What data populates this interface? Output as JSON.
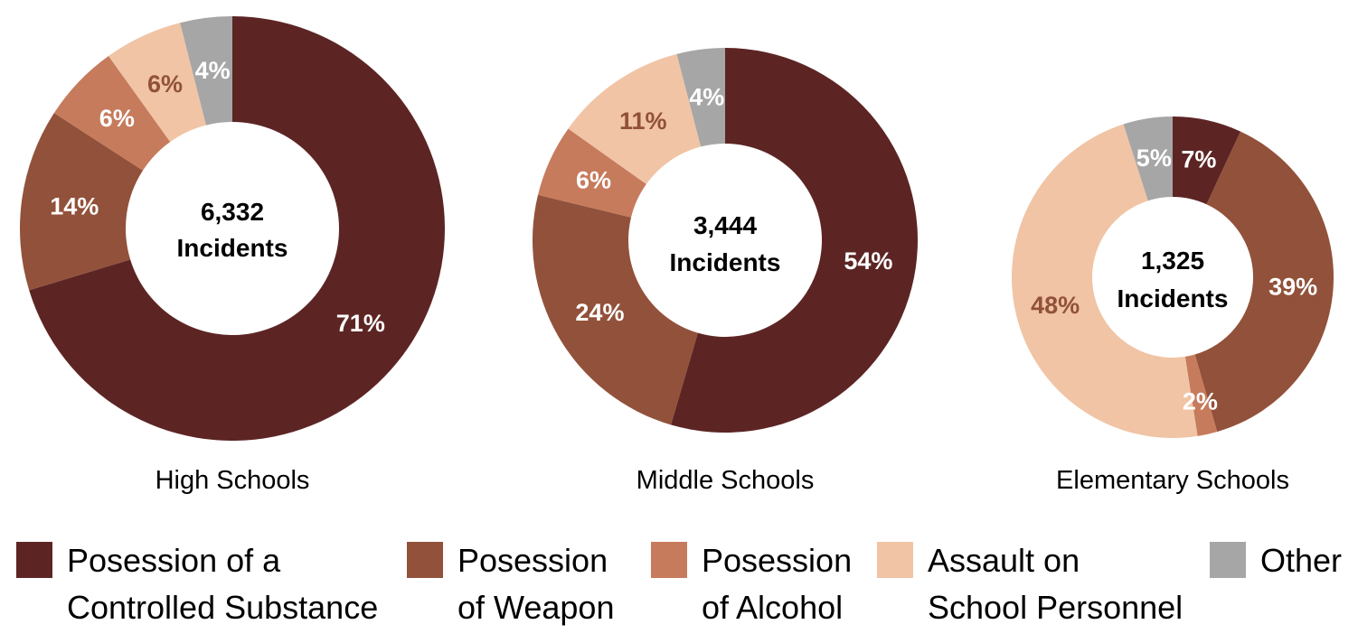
{
  "chart_data": {
    "type": "pie",
    "subtype": "donut",
    "legend_position": "bottom",
    "categories": [
      "Posession of a Controlled Substance",
      "Posession of Weapon",
      "Posession of Alcohol",
      "Assault on School Personnel",
      "Other"
    ],
    "colors": [
      "#5c2524",
      "#92513a",
      "#c67b5c",
      "#f0c4a5",
      "#a6a6a6"
    ],
    "legend": [
      {
        "lines": [
          "Posession of a",
          "Controlled Substance"
        ],
        "color": "#5c2524"
      },
      {
        "lines": [
          "Posession",
          "of Weapon"
        ],
        "color": "#92513a"
      },
      {
        "lines": [
          "Posession",
          "of Alcohol"
        ],
        "color": "#c67b5c"
      },
      {
        "lines": [
          "Assault on",
          "School Personnel"
        ],
        "color": "#f0c4a5"
      },
      {
        "lines": [
          "Other"
        ],
        "color": "#a6a6a6"
      }
    ],
    "charts": [
      {
        "title": "High Schools",
        "total": "6,332",
        "center_line2": "Incidents",
        "values": [
          71,
          14,
          6,
          6,
          4
        ],
        "labels": [
          "71%",
          "14%",
          "6%",
          "6%",
          "4%"
        ],
        "label_colors": [
          "#ffffff",
          "#ffffff",
          "#ffffff",
          "#92513a",
          "#ffffff"
        ]
      },
      {
        "title": "Middle Schools",
        "total": "3,444",
        "center_line2": "Incidents",
        "values": [
          54,
          24,
          6,
          11,
          4
        ],
        "labels": [
          "54%",
          "24%",
          "6%",
          "11%",
          "4%"
        ],
        "label_colors": [
          "#ffffff",
          "#ffffff",
          "#ffffff",
          "#92513a",
          "#ffffff"
        ]
      },
      {
        "title": "Elementary Schools",
        "total": "1,325",
        "center_line2": "Incidents",
        "values": [
          7,
          39,
          2,
          48,
          5
        ],
        "labels": [
          "7%",
          "39%",
          "2%",
          "48%",
          "5%"
        ],
        "label_colors": [
          "#ffffff",
          "#ffffff",
          "#ffffff",
          "#92513a",
          "#ffffff"
        ]
      }
    ]
  }
}
